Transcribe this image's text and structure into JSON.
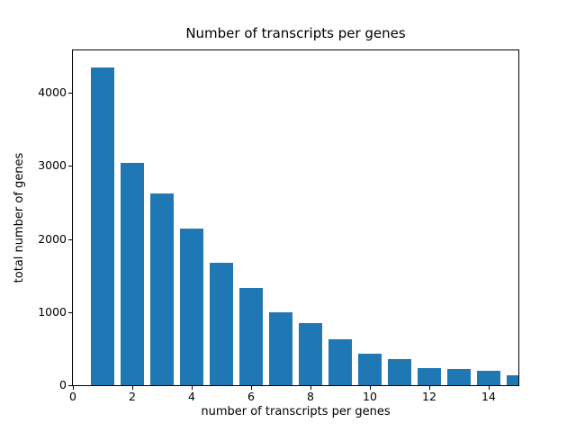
{
  "chart_data": {
    "type": "bar",
    "title": "Number of transcripts per genes",
    "xlabel": "number of transcripts per genes",
    "ylabel": "total number of genes",
    "categories": [
      1,
      2,
      3,
      4,
      5,
      6,
      7,
      8,
      9,
      10,
      11,
      12,
      13,
      14,
      15
    ],
    "values": [
      4350,
      3040,
      2620,
      2140,
      1670,
      1330,
      995,
      845,
      630,
      430,
      355,
      240,
      225,
      200,
      135
    ],
    "bar_color": "#1f77b4",
    "bar_width_units": 0.8,
    "xlim": [
      0,
      15
    ],
    "ylim": [
      0,
      4580
    ],
    "xticks": [
      0,
      2,
      4,
      6,
      8,
      10,
      12,
      14
    ],
    "yticks": [
      0,
      1000,
      2000,
      3000,
      4000
    ],
    "grid": false,
    "legend_position": "none",
    "background_color": "#ffffff",
    "text_color": "#000000"
  }
}
